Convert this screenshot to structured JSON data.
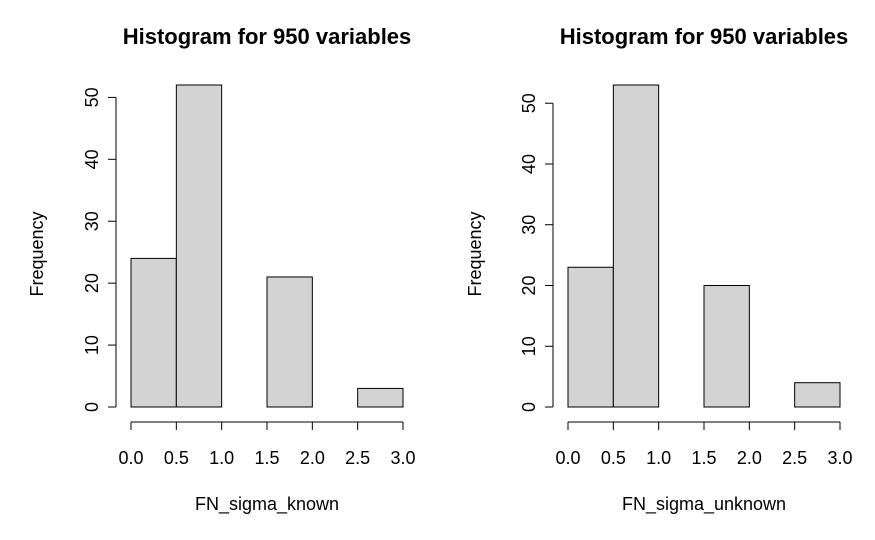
{
  "chart_data": [
    {
      "type": "bar",
      "title": "Histogram for 950 variables",
      "xlabel": "FN_sigma_known",
      "ylabel": "Frequency",
      "bins": [
        [
          0.0,
          0.5
        ],
        [
          0.5,
          1.0
        ],
        [
          1.0,
          1.5
        ],
        [
          1.5,
          2.0
        ],
        [
          2.0,
          2.5
        ],
        [
          2.5,
          3.0
        ]
      ],
      "values": [
        24,
        52,
        0,
        21,
        0,
        3
      ],
      "xlim": [
        0,
        3
      ],
      "ylim": [
        0,
        52
      ],
      "xticks": [
        "0.0",
        "0.5",
        "1.0",
        "1.5",
        "2.0",
        "2.5",
        "3.0"
      ],
      "xtick_values": [
        0,
        0.5,
        1,
        1.5,
        2,
        2.5,
        3
      ],
      "yticks": [
        "0",
        "10",
        "20",
        "30",
        "40",
        "50"
      ],
      "ytick_values": [
        0,
        10,
        20,
        30,
        40,
        50
      ],
      "bar_color": "#d3d3d3",
      "grid": false
    },
    {
      "type": "bar",
      "title": "Histogram for 950 variables",
      "xlabel": "FN_sigma_unknown",
      "ylabel": "Frequency",
      "bins": [
        [
          0.0,
          0.5
        ],
        [
          0.5,
          1.0
        ],
        [
          1.0,
          1.5
        ],
        [
          1.5,
          2.0
        ],
        [
          2.0,
          2.5
        ],
        [
          2.5,
          3.0
        ]
      ],
      "values": [
        23,
        53,
        0,
        20,
        0,
        4
      ],
      "xlim": [
        0,
        3
      ],
      "ylim": [
        0,
        53
      ],
      "xticks": [
        "0.0",
        "0.5",
        "1.0",
        "1.5",
        "2.0",
        "2.5",
        "3.0"
      ],
      "xtick_values": [
        0,
        0.5,
        1,
        1.5,
        2,
        2.5,
        3
      ],
      "yticks": [
        "0",
        "10",
        "20",
        "30",
        "40",
        "50"
      ],
      "ytick_values": [
        0,
        10,
        20,
        30,
        40,
        50
      ],
      "bar_color": "#d3d3d3",
      "grid": false
    }
  ]
}
